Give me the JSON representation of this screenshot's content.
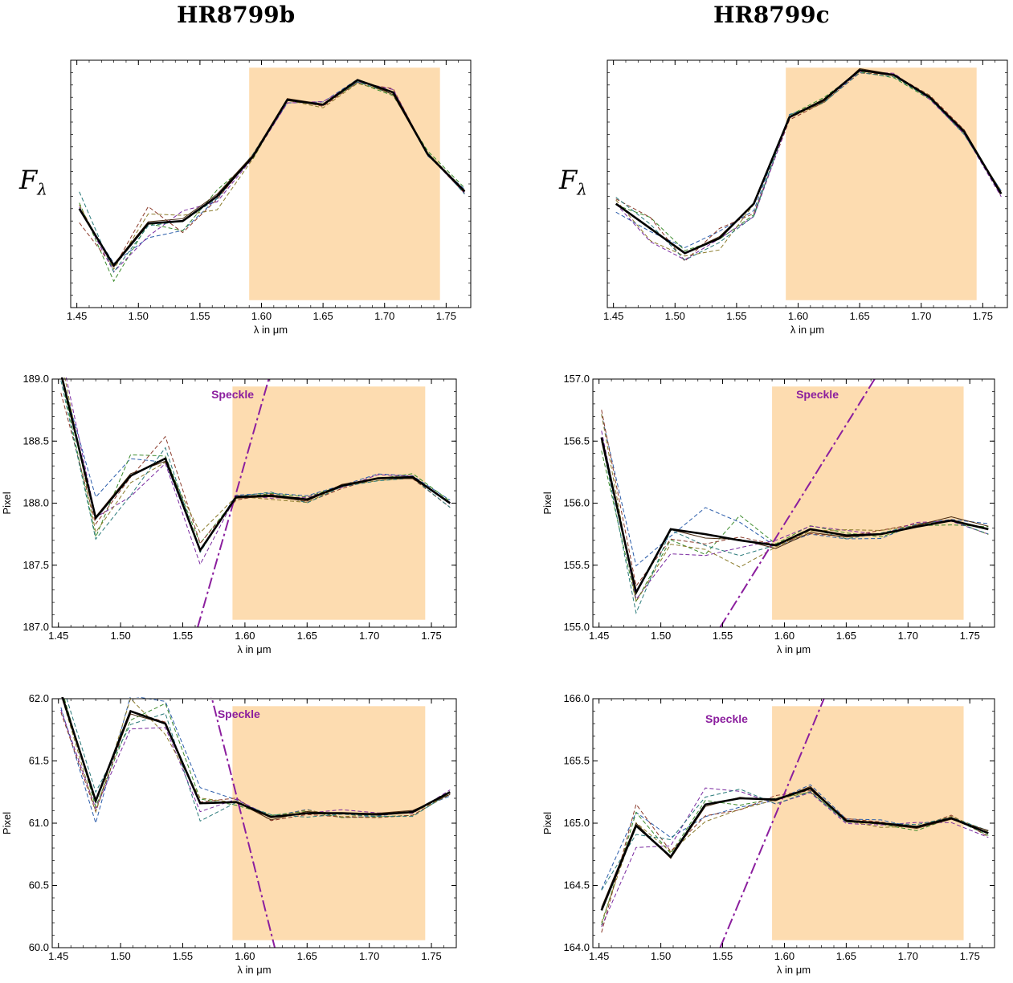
{
  "titles": {
    "left": "HR8799b",
    "right": "HR8799c"
  },
  "flux_label": {
    "main": "F",
    "sub": "λ"
  },
  "colors": {
    "band": "#fddcb0",
    "speckle": "#8b1e9e",
    "mean": "#000000",
    "brown": "#4a2a10",
    "dashed": [
      "#2a5caa",
      "#3a8a2a",
      "#8a3a2a",
      "#7a2aa0",
      "#8a7a2a",
      "#2a7a7a"
    ]
  },
  "chart_data": [
    {
      "id": "b-flux",
      "type": "line",
      "title": "HR8799b",
      "xlabel": "λ in μm",
      "ylabel": "Fλ",
      "xlim": [
        1.445,
        1.77
      ],
      "ylim": [
        0,
        1
      ],
      "yticks": [],
      "xticks": [
        1.45,
        1.5,
        1.55,
        1.6,
        1.65,
        1.7,
        1.75
      ],
      "band": [
        1.59,
        1.745
      ],
      "grid": false,
      "x": [
        1.452,
        1.48,
        1.508,
        1.536,
        1.564,
        1.593,
        1.621,
        1.65,
        1.678,
        1.707,
        1.735,
        1.765
      ],
      "series": [
        {
          "values": [
            0.4,
            0.17,
            0.34,
            0.35,
            0.45,
            0.61,
            0.84,
            0.82,
            0.92,
            0.87,
            0.62,
            0.47
          ]
        }
      ],
      "spread": 0.05
    },
    {
      "id": "c-flux",
      "type": "line",
      "title": "HR8799c",
      "xlabel": "λ in μm",
      "ylabel": "Fλ",
      "xlim": [
        1.445,
        1.77
      ],
      "ylim": [
        0,
        1
      ],
      "yticks": [],
      "xticks": [
        1.45,
        1.5,
        1.55,
        1.6,
        1.65,
        1.7,
        1.75
      ],
      "band": [
        1.59,
        1.745
      ],
      "grid": false,
      "x": [
        1.452,
        1.48,
        1.508,
        1.536,
        1.564,
        1.593,
        1.621,
        1.65,
        1.678,
        1.707,
        1.735,
        1.765
      ],
      "series": [
        {
          "values": [
            0.42,
            0.32,
            0.22,
            0.28,
            0.42,
            0.77,
            0.84,
            0.96,
            0.94,
            0.85,
            0.71,
            0.46
          ]
        }
      ],
      "spread": 0.04
    },
    {
      "id": "b-x",
      "type": "line",
      "xlabel": "λ in μm",
      "ylabel": "Pixel",
      "xlim": [
        1.445,
        1.77
      ],
      "ylim": [
        187.0,
        189.0
      ],
      "yticks": [
        "187.0",
        "187.5",
        "188.0",
        "188.5",
        "189.0"
      ],
      "ytickvals": [
        187.0,
        187.5,
        188.0,
        188.5,
        189.0
      ],
      "xticks": [
        1.45,
        1.5,
        1.55,
        1.6,
        1.65,
        1.7,
        1.75
      ],
      "band": [
        1.59,
        1.745
      ],
      "speckle_label": "Speckle",
      "speckle_line": [
        [
          1.562,
          187.0
        ],
        [
          1.622,
          189.1
        ]
      ],
      "x": [
        1.452,
        1.48,
        1.508,
        1.536,
        1.564,
        1.593,
        1.621,
        1.65,
        1.678,
        1.707,
        1.735,
        1.765
      ],
      "series": [
        {
          "values": [
            189.05,
            187.88,
            188.22,
            188.36,
            187.62,
            188.05,
            188.06,
            188.03,
            188.14,
            188.2,
            188.21,
            188.0
          ]
        }
      ],
      "spread": 0.06
    },
    {
      "id": "c-x",
      "type": "line",
      "xlabel": "λ in μm",
      "ylabel": "Pixel",
      "xlim": [
        1.445,
        1.77
      ],
      "ylim": [
        155.0,
        157.0
      ],
      "yticks": [
        "155.0",
        "155.5",
        "156.0",
        "156.5",
        "157.0"
      ],
      "ytickvals": [
        155.0,
        155.5,
        156.0,
        156.5,
        157.0
      ],
      "xticks": [
        1.45,
        1.5,
        1.55,
        1.6,
        1.65,
        1.7,
        1.75
      ],
      "band": [
        1.59,
        1.745
      ],
      "speckle_label": "Speckle",
      "speckle_line": [
        [
          1.548,
          155.0
        ],
        [
          1.673,
          157.0
        ]
      ],
      "x": [
        1.452,
        1.48,
        1.508,
        1.536,
        1.564,
        1.593,
        1.621,
        1.65,
        1.678,
        1.707,
        1.735,
        1.765
      ],
      "series": [
        {
          "values": [
            156.53,
            155.28,
            155.79,
            155.75,
            155.7,
            155.66,
            155.79,
            155.74,
            155.75,
            155.81,
            155.86,
            155.79
          ]
        }
      ],
      "spread": 0.08
    },
    {
      "id": "b-y",
      "type": "line",
      "xlabel": "λ in μm",
      "ylabel": "Pixel",
      "xlim": [
        1.445,
        1.77
      ],
      "ylim": [
        60.0,
        62.0
      ],
      "yticks": [
        "60.0",
        "60.5",
        "61.0",
        "61.5",
        "62.0"
      ],
      "ytickvals": [
        60.0,
        60.5,
        61.0,
        61.5,
        62.0
      ],
      "xticks": [
        1.45,
        1.5,
        1.55,
        1.6,
        1.65,
        1.7,
        1.75
      ],
      "band": [
        1.59,
        1.745
      ],
      "speckle_label": "Speckle",
      "speckle_line": [
        [
          1.571,
          62.1
        ],
        [
          1.624,
          60.0
        ]
      ],
      "x": [
        1.452,
        1.48,
        1.508,
        1.536,
        1.564,
        1.593,
        1.621,
        1.65,
        1.678,
        1.707,
        1.735,
        1.765
      ],
      "series": [
        {
          "values": [
            62.05,
            61.18,
            61.9,
            61.8,
            61.16,
            61.17,
            61.05,
            61.08,
            61.08,
            61.07,
            61.09,
            61.25
          ]
        }
      ],
      "spread": 0.06
    },
    {
      "id": "c-y",
      "type": "line",
      "xlabel": "λ in μm",
      "ylabel": "Pixel",
      "xlim": [
        1.445,
        1.77
      ],
      "ylim": [
        164.0,
        166.0
      ],
      "yticks": [
        "164.0",
        "164.5",
        "165.0",
        "165.5",
        "166.0"
      ],
      "ytickvals": [
        164.0,
        164.5,
        165.0,
        165.5,
        166.0
      ],
      "xticks": [
        1.45,
        1.5,
        1.55,
        1.6,
        1.65,
        1.7,
        1.75
      ],
      "band": [
        1.59,
        1.745
      ],
      "speckle_label": "Speckle",
      "speckle_line": [
        [
          1.548,
          164.0
        ],
        [
          1.632,
          166.0
        ]
      ],
      "x": [
        1.452,
        1.48,
        1.508,
        1.536,
        1.564,
        1.593,
        1.621,
        1.65,
        1.678,
        1.707,
        1.735,
        1.765
      ],
      "series": [
        {
          "values": [
            164.3,
            164.98,
            164.73,
            165.15,
            165.2,
            165.19,
            165.28,
            165.02,
            165.0,
            164.97,
            165.04,
            164.92
          ]
        }
      ],
      "spread": 0.06
    }
  ]
}
